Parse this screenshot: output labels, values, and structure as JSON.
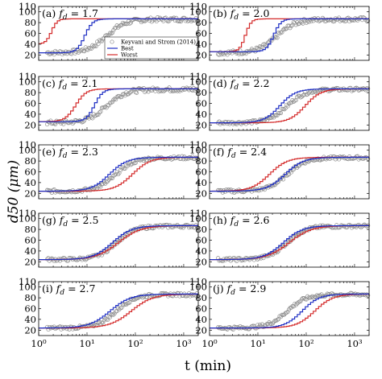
{
  "figure": {
    "ylabel": "d50 (μm)",
    "xlabel": "t (min)",
    "legend": {
      "observed": "Keyvani and Strom (2014)",
      "best": "Best",
      "worst": "Worst"
    }
  },
  "colors": {
    "best": "#1f2fc4",
    "worst": "#d42a2a",
    "observed": "#8c8c8c",
    "axes": "#000000"
  },
  "chart_data": [
    {
      "type": "line",
      "panel_label": "(a)",
      "fd": "1.7",
      "xscale": "log",
      "xlim": [
        1,
        2000
      ],
      "ylim": [
        10,
        110
      ],
      "x_ticks": [
        "10⁰",
        "10¹",
        "10²",
        "10³"
      ],
      "y_ticks": [
        "20",
        "40",
        "60",
        "80",
        "100"
      ],
      "best": {
        "d_min": 24,
        "d_max": 87,
        "t_start": 4,
        "t_end": 18
      },
      "worst": {
        "d_min": 40,
        "d_max": 87,
        "t_start": 1,
        "t_end": 3
      },
      "observed": {
        "d_start": 24,
        "d_end": 86,
        "t_mid": 25,
        "spread": 8
      }
    },
    {
      "type": "line",
      "panel_label": "(b)",
      "fd": "2.0",
      "xscale": "log",
      "xlim": [
        1,
        2000
      ],
      "ylim": [
        10,
        110
      ],
      "x_ticks": [
        "10⁰",
        "10¹",
        "10²",
        "10³"
      ],
      "y_ticks": [
        "20",
        "40",
        "60",
        "80",
        "100"
      ],
      "best": {
        "d_min": 26,
        "d_max": 87,
        "t_start": 10,
        "t_end": 40
      },
      "worst": {
        "d_min": 26,
        "d_max": 87,
        "t_start": 3,
        "t_end": 9
      },
      "observed": {
        "d_start": 24,
        "d_end": 86,
        "t_mid": 25,
        "spread": 8
      }
    },
    {
      "type": "line",
      "panel_label": "(c)",
      "fd": "2.1",
      "xscale": "log",
      "xlim": [
        1,
        2000
      ],
      "ylim": [
        10,
        110
      ],
      "x_ticks": [
        "10⁰",
        "10¹",
        "10²",
        "10³"
      ],
      "y_ticks": [
        "20",
        "40",
        "60",
        "80",
        "100"
      ],
      "best": {
        "d_min": 26,
        "d_max": 87,
        "t_start": 6,
        "t_end": 30
      },
      "worst": {
        "d_min": 26,
        "d_max": 87,
        "t_start": 2,
        "t_end": 15
      },
      "observed": {
        "d_start": 24,
        "d_end": 86,
        "t_mid": 25,
        "spread": 8
      }
    },
    {
      "type": "line",
      "panel_label": "(d)",
      "fd": "2.2",
      "xscale": "log",
      "xlim": [
        1,
        2000
      ],
      "ylim": [
        10,
        110
      ],
      "x_ticks": [
        "10⁰",
        "10¹",
        "10²",
        "10³"
      ],
      "y_ticks": [
        "20",
        "40",
        "60",
        "80",
        "100"
      ],
      "best": {
        "d_min": 24,
        "d_max": 87,
        "t_start": 6,
        "t_end": 120
      },
      "worst": {
        "d_min": 24,
        "d_max": 87,
        "t_start": 20,
        "t_end": 400
      },
      "observed": {
        "d_start": 24,
        "d_end": 86,
        "t_mid": 40,
        "spread": 6
      }
    },
    {
      "type": "line",
      "panel_label": "(e)",
      "fd": "2.3",
      "xscale": "log",
      "xlim": [
        1,
        2000
      ],
      "ylim": [
        10,
        110
      ],
      "x_ticks": [
        "10⁰",
        "10¹",
        "10²",
        "10³"
      ],
      "y_ticks": [
        "20",
        "40",
        "60",
        "80",
        "100"
      ],
      "best": {
        "d_min": 24,
        "d_max": 87,
        "t_start": 5,
        "t_end": 150
      },
      "worst": {
        "d_min": 24,
        "d_max": 87,
        "t_start": 15,
        "t_end": 450
      },
      "observed": {
        "d_start": 24,
        "d_end": 86,
        "t_mid": 40,
        "spread": 6
      }
    },
    {
      "type": "line",
      "panel_label": "(f)",
      "fd": "2.4",
      "xscale": "log",
      "xlim": [
        1,
        2000
      ],
      "ylim": [
        10,
        110
      ],
      "x_ticks": [
        "10⁰",
        "10¹",
        "10²",
        "10³"
      ],
      "y_ticks": [
        "20",
        "40",
        "60",
        "80",
        "100"
      ],
      "best": {
        "d_min": 24,
        "d_max": 87,
        "t_start": 6,
        "t_end": 200
      },
      "worst": {
        "d_min": 24,
        "d_max": 87,
        "t_start": 3,
        "t_end": 90
      },
      "observed": {
        "d_start": 24,
        "d_end": 86,
        "t_mid": 40,
        "spread": 6
      }
    },
    {
      "type": "line",
      "panel_label": "(g)",
      "fd": "2.5",
      "xscale": "log",
      "xlim": [
        1,
        2000
      ],
      "ylim": [
        10,
        110
      ],
      "x_ticks": [
        "10⁰",
        "10¹",
        "10²",
        "10³"
      ],
      "y_ticks": [
        "20",
        "40",
        "60",
        "80",
        "100"
      ],
      "best": {
        "d_min": 24,
        "d_max": 87,
        "t_start": 5,
        "t_end": 200
      },
      "worst": {
        "d_min": 24,
        "d_max": 87,
        "t_start": 5,
        "t_end": 350
      },
      "observed": {
        "d_start": 24,
        "d_end": 86,
        "t_mid": 40,
        "spread": 6
      }
    },
    {
      "type": "line",
      "panel_label": "(h)",
      "fd": "2.6",
      "xscale": "log",
      "xlim": [
        1,
        2000
      ],
      "ylim": [
        10,
        110
      ],
      "x_ticks": [
        "10⁰",
        "10¹",
        "10²",
        "10³"
      ],
      "y_ticks": [
        "20",
        "40",
        "60",
        "80",
        "100"
      ],
      "best": {
        "d_min": 24,
        "d_max": 87,
        "t_start": 5,
        "t_end": 200
      },
      "worst": {
        "d_min": 24,
        "d_max": 87,
        "t_start": 5,
        "t_end": 350
      },
      "observed": {
        "d_start": 24,
        "d_end": 86,
        "t_mid": 40,
        "spread": 6
      }
    },
    {
      "type": "line",
      "panel_label": "(i)",
      "fd": "2.7",
      "xscale": "log",
      "xlim": [
        1,
        2000
      ],
      "ylim": [
        10,
        110
      ],
      "x_ticks": [
        "10⁰",
        "10¹",
        "10²",
        "10³"
      ],
      "y_ticks": [
        "20",
        "40",
        "60",
        "80",
        "100"
      ],
      "best": {
        "d_min": 24,
        "d_max": 87,
        "t_start": 4,
        "t_end": 200
      },
      "worst": {
        "d_min": 24,
        "d_max": 87,
        "t_start": 10,
        "t_end": 600
      },
      "observed": {
        "d_start": 24,
        "d_end": 86,
        "t_mid": 40,
        "spread": 6
      }
    },
    {
      "type": "line",
      "panel_label": "(j)",
      "fd": "2.9",
      "xscale": "log",
      "xlim": [
        1,
        2000
      ],
      "ylim": [
        10,
        110
      ],
      "x_ticks": [
        "10⁰",
        "10¹",
        "10²",
        "10³"
      ],
      "y_ticks": [
        "20",
        "40",
        "60",
        "80",
        "100"
      ],
      "best": {
        "d_min": 24,
        "d_max": 87,
        "t_start": 15,
        "t_end": 400
      },
      "worst": {
        "d_min": 24,
        "d_max": 87,
        "t_start": 25,
        "t_end": 800
      },
      "observed": {
        "d_start": 24,
        "d_end": 86,
        "t_mid": 40,
        "spread": 6
      }
    }
  ]
}
